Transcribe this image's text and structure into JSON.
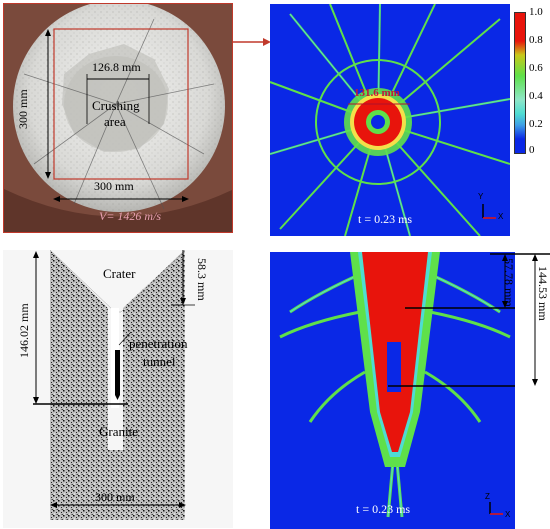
{
  "top_left": {
    "crush_dim": "126.8 mm",
    "crush_label_1": "Crushing",
    "crush_label_2": "area",
    "height_dim": "300 mm",
    "width_dim": "300 mm",
    "handwriting": "V= 1426 m/s"
  },
  "top_right": {
    "time_label": "t = 0.23 ms",
    "damage_zone_dim": "131.6 mm",
    "colorbar_ticks": [
      "1.0",
      "0.8",
      "0.6",
      "0.4",
      "0.2",
      "0"
    ],
    "axis_y": "Y",
    "axis_x": "X"
  },
  "bottom_left": {
    "crater_label": "Crater",
    "crater_depth": "58.3 mm",
    "penetration_depth": "146.02 mm",
    "tunnel_label_1": "penetration",
    "tunnel_label_2": "tunnel",
    "granite_label": "Granite",
    "width_dim": "300 mm"
  },
  "bottom_right": {
    "crater_depth": "57.78 mm",
    "penetration_depth": "144.53 mm",
    "time_label": "t = 0.23 ms",
    "axis_z": "Z",
    "axis_x": "X"
  },
  "colors": {
    "sim_background": "#0a28e6",
    "damage_red": "#e8140c",
    "damage_green": "#5fe04a",
    "damage_cyan": "#4fdcd2",
    "photo_frame": "#c0392b"
  }
}
